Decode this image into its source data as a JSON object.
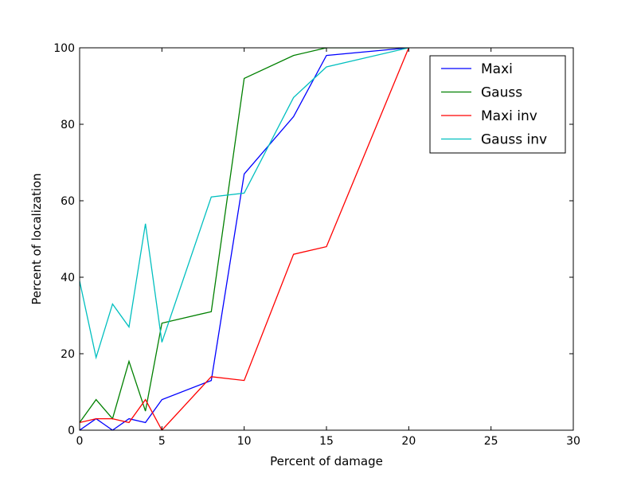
{
  "chart_data": {
    "type": "line",
    "title": "",
    "xlabel": "Percent of damage",
    "ylabel": "Percent of localization",
    "xlim": [
      0,
      30
    ],
    "ylim": [
      0,
      100
    ],
    "xticks": [
      0,
      5,
      10,
      15,
      20,
      25,
      30
    ],
    "yticks": [
      0,
      20,
      40,
      60,
      80,
      100
    ],
    "grid": false,
    "legend_position": "top-right",
    "x": [
      0,
      1,
      2,
      3,
      4,
      5,
      8,
      10,
      13,
      15,
      20
    ],
    "series": [
      {
        "name": "Maxi",
        "color": "#0000ff",
        "values": [
          0,
          3,
          0,
          3,
          2,
          8,
          13,
          67,
          82,
          98,
          100
        ]
      },
      {
        "name": "Gauss",
        "color": "#008000",
        "values": [
          2,
          8,
          3,
          18,
          5,
          28,
          31,
          92,
          98,
          100,
          100
        ]
      },
      {
        "name": "Maxi inv",
        "color": "#ff0000",
        "values": [
          2,
          3,
          3,
          2,
          8,
          0,
          14,
          13,
          46,
          48,
          100
        ]
      },
      {
        "name": "Gauss inv",
        "color": "#00bfbf",
        "values": [
          39,
          19,
          33,
          27,
          54,
          23,
          61,
          62,
          87,
          95,
          100
        ]
      }
    ]
  }
}
